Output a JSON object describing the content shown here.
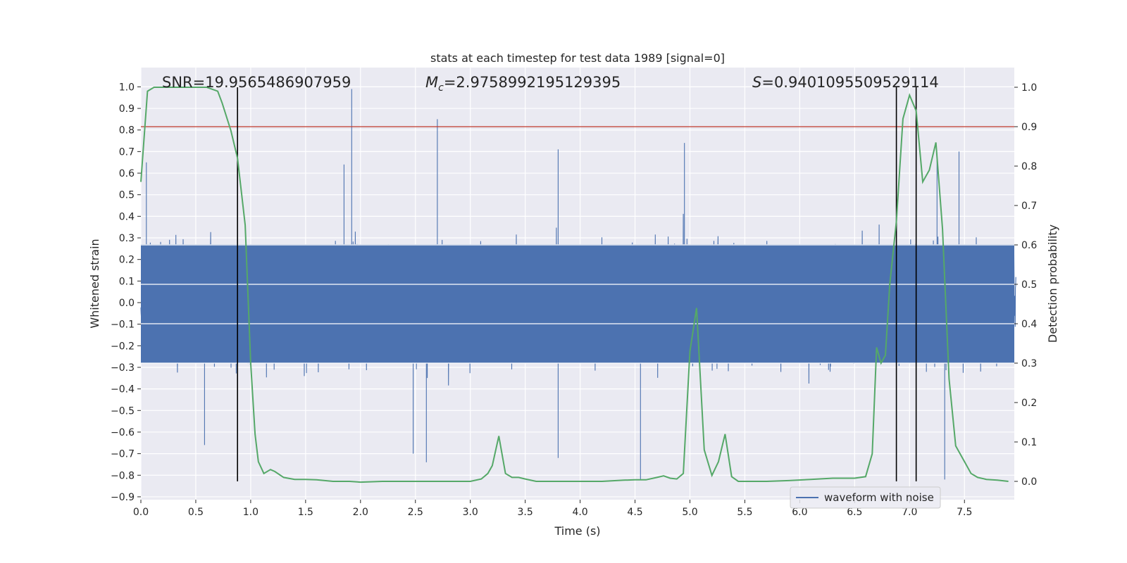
{
  "chart_data": {
    "type": "line",
    "title": "stats at each timestep for test data 1989 [signal=0]",
    "xlabel": "Time (s)",
    "ylabel": "Whitened strain",
    "ylabel_right": "Detection probability",
    "xlim": [
      0.0,
      7.97
    ],
    "ylim": [
      -0.91,
      1.09
    ],
    "ylim_right": [
      -0.045,
      1.045
    ],
    "x_ticks": [
      0.0,
      0.5,
      1.0,
      1.5,
      2.0,
      2.5,
      3.0,
      3.5,
      4.0,
      4.5,
      5.0,
      5.5,
      6.0,
      6.5,
      7.0,
      7.5
    ],
    "x_tick_labels": [
      "0.0",
      "0.5",
      "1.0",
      "1.5",
      "2.0",
      "2.5",
      "3.0",
      "3.5",
      "4.0",
      "4.5",
      "5.0",
      "5.5",
      "6.0",
      "6.5",
      "7.0",
      "7.5"
    ],
    "y_ticks": [
      -0.9,
      -0.8,
      -0.7,
      -0.6,
      -0.5,
      -0.4,
      -0.3,
      -0.2,
      -0.1,
      0.0,
      0.1,
      0.2,
      0.3,
      0.4,
      0.5,
      0.6,
      0.7,
      0.8,
      0.9,
      1.0
    ],
    "y_tick_labels": [
      "−0.9",
      "−0.8",
      "−0.7",
      "−0.6",
      "−0.5",
      "−0.4",
      "−0.3",
      "−0.2",
      "−0.1",
      "0.0",
      "0.1",
      "0.2",
      "0.3",
      "0.4",
      "0.5",
      "0.6",
      "0.7",
      "0.8",
      "0.9",
      "1.0"
    ],
    "y_right_ticks": [
      0.0,
      0.1,
      0.2,
      0.3,
      0.4,
      0.5,
      0.6,
      0.7,
      0.8,
      0.9,
      1.0
    ],
    "y_right_tick_labels": [
      "0.0",
      "0.1",
      "0.2",
      "0.3",
      "0.4",
      "0.5",
      "0.6",
      "0.7",
      "0.8",
      "0.9",
      "1.0"
    ],
    "grid": true,
    "legend": {
      "position": "lower-right",
      "entries": [
        "waveform with noise"
      ]
    },
    "annotations": {
      "snr_label": "SNR=19.9565486907959",
      "mc_symbol": "M",
      "mc_subscript": "c",
      "mc_value": "=2.9758992195129395",
      "s_symbol": "S",
      "s_value": "=0.9401095509529114"
    },
    "threshold": {
      "value_right": 0.9,
      "color": "#c0392b"
    },
    "vertical_lines": [
      0.88,
      6.88,
      7.06
    ],
    "series": [
      {
        "name": "waveform with noise",
        "color": "#4c72b0",
        "description_values": {
          "typical_upper_envelope": 0.45,
          "typical_lower_envelope": -0.45,
          "dense_band": [
            -0.28,
            0.27
          ],
          "peaks": [
            [
              0.05,
              0.65
            ],
            [
              1.92,
              0.99
            ],
            [
              2.7,
              0.85
            ],
            [
              4.95,
              0.74
            ],
            [
              3.8,
              0.71
            ],
            [
              1.85,
              0.64
            ],
            [
              7.25,
              0.69
            ],
            [
              7.45,
              0.7
            ]
          ],
          "troughs": [
            [
              0.58,
              -0.66
            ],
            [
              2.6,
              -0.74
            ],
            [
              3.8,
              -0.72
            ],
            [
              4.55,
              -0.82
            ],
            [
              7.32,
              -0.82
            ],
            [
              2.48,
              -0.7
            ]
          ]
        }
      },
      {
        "name": "",
        "color": "#55a868",
        "axis": "right",
        "x": [
          0.0,
          0.06,
          0.12,
          0.2,
          0.3,
          0.4,
          0.5,
          0.6,
          0.7,
          0.74,
          0.82,
          0.88,
          0.95,
          1.0,
          1.04,
          1.07,
          1.12,
          1.18,
          1.22,
          1.3,
          1.4,
          1.5,
          1.6,
          1.75,
          1.9,
          2.0,
          2.2,
          2.4,
          2.6,
          2.8,
          3.0,
          3.1,
          3.16,
          3.2,
          3.26,
          3.32,
          3.38,
          3.44,
          3.5,
          3.6,
          3.8,
          4.0,
          4.2,
          4.4,
          4.5,
          4.6,
          4.7,
          4.76,
          4.82,
          4.88,
          4.94,
          5.0,
          5.06,
          5.13,
          5.2,
          5.26,
          5.32,
          5.38,
          5.44,
          5.5,
          5.7,
          5.9,
          6.1,
          6.3,
          6.5,
          6.6,
          6.66,
          6.7,
          6.74,
          6.78,
          6.82,
          6.88,
          6.94,
          7.0,
          7.06,
          7.12,
          7.18,
          7.24,
          7.3,
          7.36,
          7.42,
          7.5,
          7.56,
          7.62,
          7.7,
          7.8,
          7.9
        ],
        "y": [
          0.76,
          0.99,
          1.0,
          1.0,
          1.0,
          1.0,
          1.0,
          1.0,
          0.99,
          0.96,
          0.89,
          0.82,
          0.65,
          0.3,
          0.12,
          0.05,
          0.02,
          0.03,
          0.025,
          0.01,
          0.005,
          0.005,
          0.004,
          0.0,
          0.0,
          -0.002,
          0.0,
          0.0,
          0.0,
          0.0,
          0.0,
          0.006,
          0.02,
          0.04,
          0.115,
          0.02,
          0.01,
          0.01,
          0.006,
          0.0,
          0.0,
          0.0,
          0.0,
          0.003,
          0.004,
          0.004,
          0.01,
          0.014,
          0.008,
          0.006,
          0.02,
          0.33,
          0.44,
          0.08,
          0.015,
          0.05,
          0.12,
          0.012,
          0.0,
          0.0,
          0.0,
          0.002,
          0.005,
          0.008,
          0.008,
          0.012,
          0.07,
          0.34,
          0.3,
          0.32,
          0.5,
          0.66,
          0.92,
          0.98,
          0.94,
          0.76,
          0.79,
          0.86,
          0.64,
          0.26,
          0.09,
          0.05,
          0.02,
          0.01,
          0.005,
          0.003,
          0.0
        ]
      }
    ]
  }
}
